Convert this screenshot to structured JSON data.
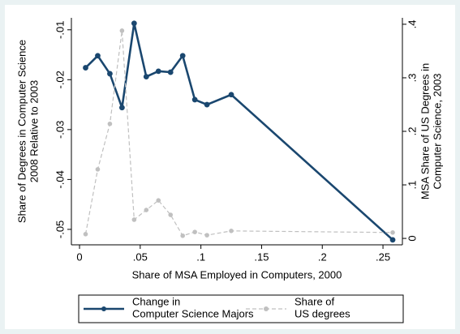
{
  "chart_data": {
    "type": "line",
    "x_label": "Share of MSA Employed in Computers, 2000",
    "y_label": "Share of Degrees in Computer Science\n2008 Relative to 2003",
    "y2_label": "MSA Share of US Degrees in\nComputer Science, 2003",
    "x": [
      0.005,
      0.015,
      0.025,
      0.035,
      0.045,
      0.055,
      0.065,
      0.075,
      0.085,
      0.095,
      0.105,
      0.125,
      0.258
    ],
    "series": [
      {
        "name": "Change in\nComputer Science Majors",
        "color": "#1a476f",
        "values": [
          -0.0176,
          -0.0152,
          -0.0188,
          -0.0256,
          -0.0087,
          -0.0194,
          -0.0183,
          -0.0185,
          -0.0152,
          -0.024,
          -0.025,
          -0.023,
          -0.0521
        ]
      },
      {
        "name": "Share of\nUS degrees",
        "color": "#c0c0c0",
        "axis": "y2",
        "values": [
          0.008,
          0.129,
          0.214,
          0.388,
          0.035,
          0.053,
          0.071,
          0.044,
          0.005,
          0.012,
          0.006,
          0.014,
          0.011
        ]
      }
    ],
    "xlim": [
      -0.0067,
      0.266
    ],
    "xticks": [
      0,
      {
        "value": 0.05,
        "label": ".05"
      },
      {
        "value": 0.1,
        "label": ".1"
      },
      {
        "value": 0.15,
        "label": ".15"
      },
      {
        "value": 0.2,
        "label": ".2"
      },
      {
        "value": 0.25,
        "label": ".25"
      }
    ],
    "ylim": [
      -0.0531,
      -0.0076
    ],
    "yticks": [
      {
        "value": -0.05,
        "label": "-.05"
      },
      {
        "value": -0.04,
        "label": "-.04"
      },
      {
        "value": -0.03,
        "label": "-.03"
      },
      {
        "value": -0.02,
        "label": "-.02"
      },
      {
        "value": -0.01,
        "label": "-.01"
      }
    ],
    "y2lim": [
      -0.012,
      0.412
    ],
    "y2ticks": [
      0,
      {
        "value": 0.1,
        "label": ".1"
      },
      {
        "value": 0.2,
        "label": ".2"
      },
      {
        "value": 0.3,
        "label": ".3"
      },
      {
        "value": 0.4,
        "label": ".4"
      }
    ]
  }
}
